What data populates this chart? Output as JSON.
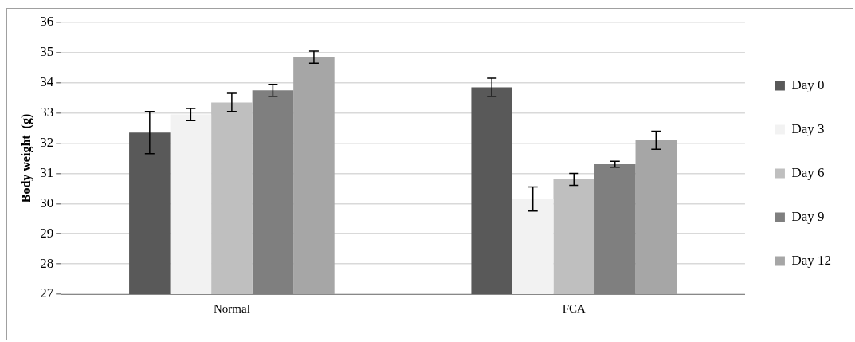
{
  "chart_data": {
    "type": "bar",
    "ylabel": "Body weight  (g)",
    "categories": [
      "Normal",
      "FCA"
    ],
    "series": [
      {
        "name": "Day 0",
        "color": "#595959",
        "values": [
          32.35,
          33.85
        ],
        "errors": [
          0.7,
          0.3
        ]
      },
      {
        "name": "Day 3",
        "color": "#f2f2f2",
        "values": [
          32.95,
          30.15
        ],
        "errors": [
          0.2,
          0.4
        ]
      },
      {
        "name": "Day 6",
        "color": "#bfbfbf",
        "values": [
          33.35,
          30.8
        ],
        "errors": [
          0.3,
          0.2
        ]
      },
      {
        "name": "Day 9",
        "color": "#7f7f7f",
        "values": [
          33.75,
          31.3
        ],
        "errors": [
          0.2,
          0.1
        ]
      },
      {
        "name": "Day 12",
        "color": "#a6a6a6",
        "values": [
          34.85,
          32.1
        ],
        "errors": [
          0.2,
          0.3
        ]
      }
    ],
    "ylim": [
      27,
      36
    ],
    "yticks": [
      27,
      28,
      29,
      30,
      31,
      32,
      33,
      34,
      35,
      36
    ],
    "grid": "y",
    "legend": "right"
  }
}
